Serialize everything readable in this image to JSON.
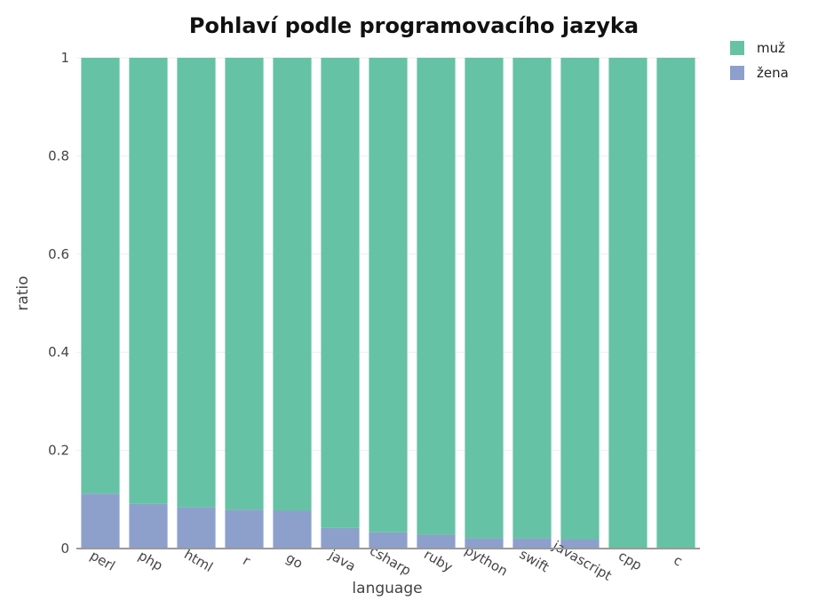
{
  "chart_data": {
    "type": "bar",
    "stacked": true,
    "title": "Pohlaví podle programovacího jazyka",
    "xlabel": "language",
    "ylabel": "ratio",
    "ylim": [
      0,
      1
    ],
    "yticks": [
      0,
      0.2,
      0.4,
      0.6,
      0.8,
      1
    ],
    "ytick_labels": [
      "0",
      "0.2",
      "0.4",
      "0.6",
      "0.8",
      "1"
    ],
    "categories": [
      "perl",
      "php",
      "html",
      "r",
      "go",
      "java",
      "csharp",
      "ruby",
      "python",
      "swift",
      "javascript",
      "cpp",
      "c"
    ],
    "series": [
      {
        "name": "žena",
        "color": "#8da0cb",
        "values": [
          0.112,
          0.091,
          0.084,
          0.079,
          0.077,
          0.042,
          0.033,
          0.028,
          0.021,
          0.021,
          0.019,
          0.0,
          0.0
        ]
      },
      {
        "name": "muž",
        "color": "#66c2a5",
        "values": [
          0.888,
          0.909,
          0.916,
          0.921,
          0.923,
          0.958,
          0.967,
          0.972,
          0.979,
          0.979,
          0.981,
          1.0,
          1.0
        ]
      }
    ],
    "legend": {
      "position": "top-right",
      "order": [
        "muž",
        "žena"
      ]
    },
    "grid": true
  }
}
